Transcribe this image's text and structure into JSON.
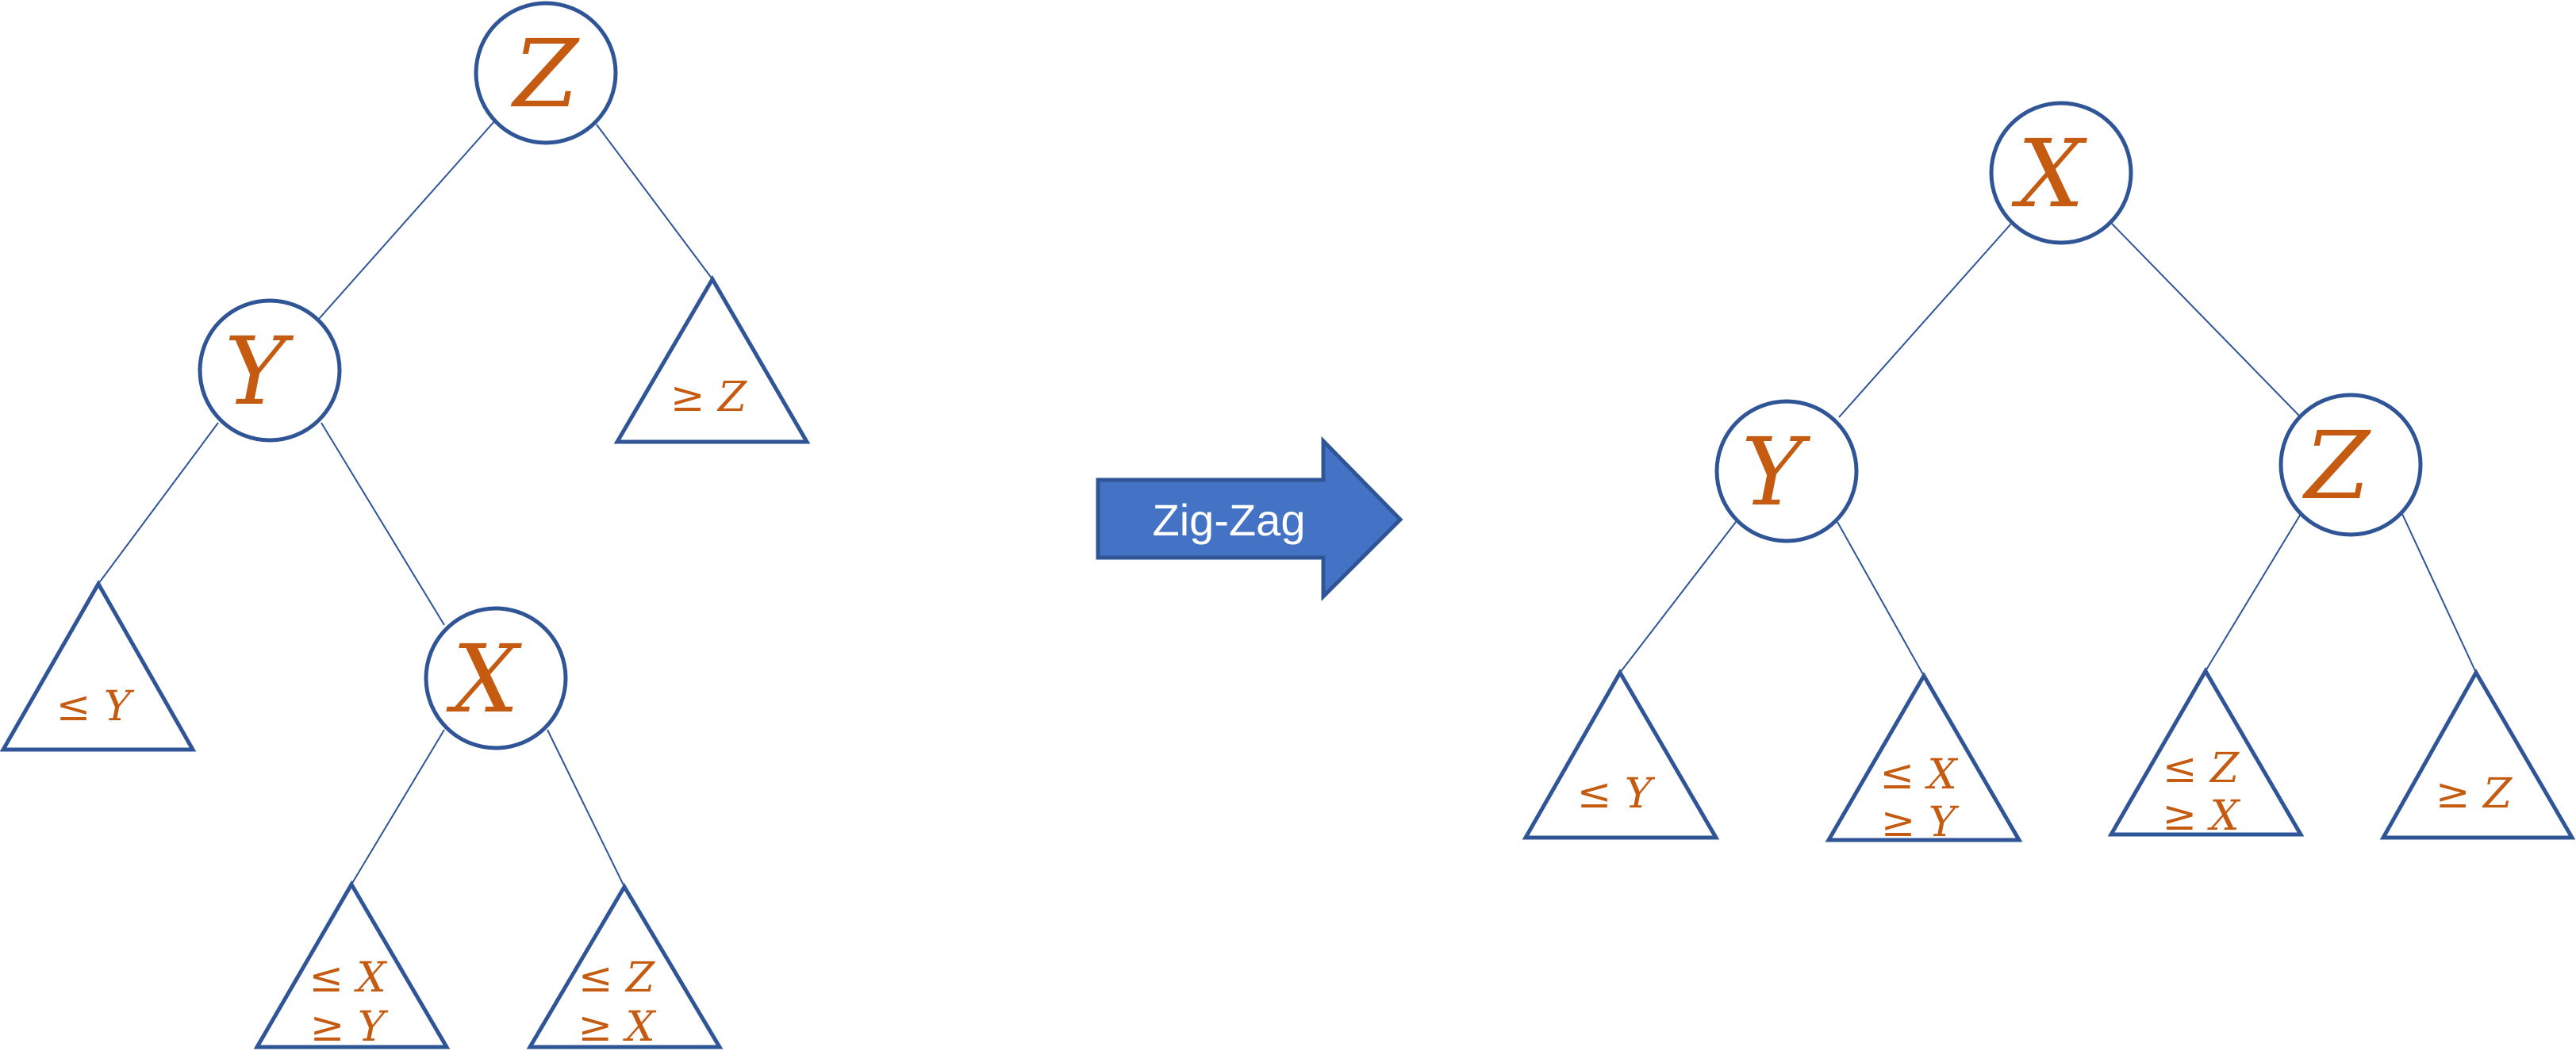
{
  "before": {
    "nodes": {
      "root": "Z",
      "left": "Y",
      "left_right": "X"
    },
    "subtrees": {
      "root_right": [
        "≥ Z"
      ],
      "y_left": [
        "≤ Y"
      ],
      "x_left": [
        "≤ X",
        "≥ Y"
      ],
      "x_right": [
        "≤ Z",
        "≥ X"
      ]
    }
  },
  "transform": {
    "label": "Zig-Zag"
  },
  "after": {
    "nodes": {
      "root": "X",
      "left": "Y",
      "right": "Z"
    },
    "subtrees": {
      "y_left": [
        "≤ Y"
      ],
      "y_right": [
        "≤ X",
        "≥ Y"
      ],
      "z_left": [
        "≤ Z",
        "≥ X"
      ],
      "z_right": [
        "≥ Z"
      ]
    }
  },
  "colors": {
    "line": "#2f5597",
    "label": "#c55a11",
    "arrow_fill": "#4472c4",
    "arrow_text": "#ffffff"
  }
}
